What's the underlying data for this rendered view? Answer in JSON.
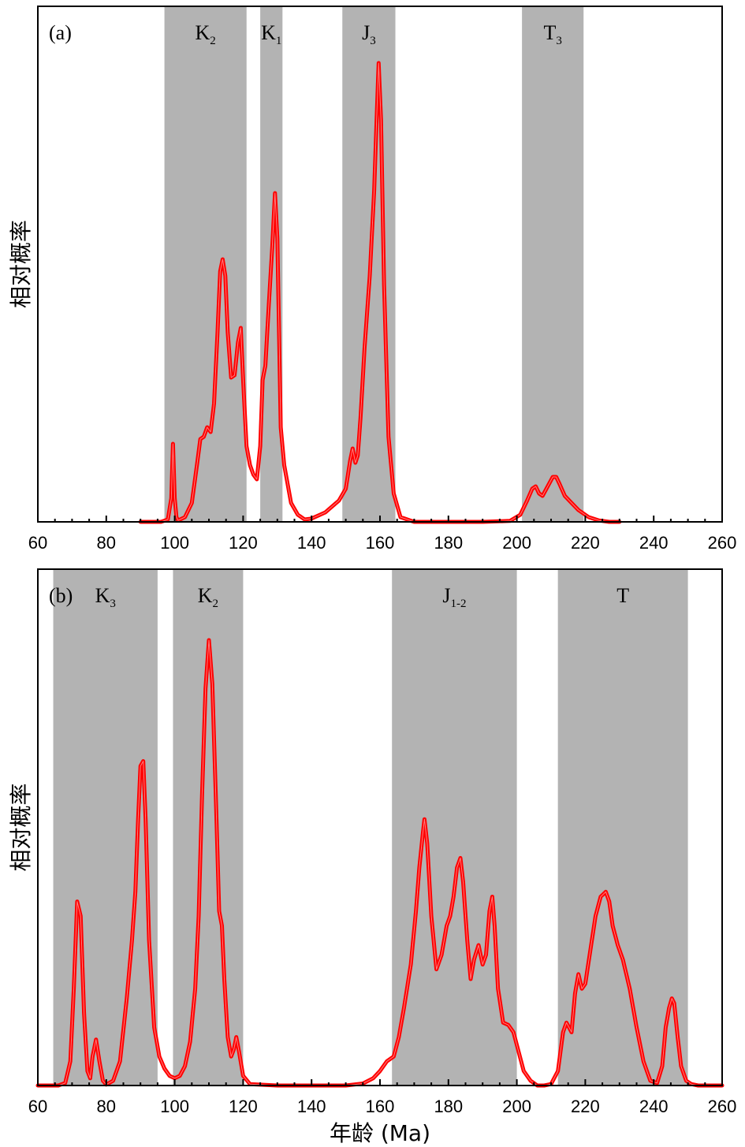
{
  "chart_data": [
    {
      "type": "area",
      "panel_label": "(a)",
      "ylabel": "相对概率",
      "xlabel": "",
      "xlim": [
        60,
        260
      ],
      "xticks": [
        60,
        80,
        100,
        120,
        140,
        160,
        180,
        200,
        220,
        240,
        260
      ],
      "shaded_bands": [
        {
          "base": "K",
          "sub": "2",
          "x0": 97,
          "x1": 121
        },
        {
          "base": "K",
          "sub": "1",
          "x0": 125,
          "x1": 131.5
        },
        {
          "base": "J",
          "sub": "3",
          "x0": 149,
          "x1": 164.5
        },
        {
          "base": "T",
          "sub": "3",
          "x0": 201.5,
          "x1": 219.5
        }
      ],
      "series": [
        {
          "color": "#ff0000",
          "x": [
            90,
            96,
            98,
            99,
            99.5,
            100,
            100.5,
            101,
            103,
            105,
            106.5,
            107.5,
            108.5,
            109.5,
            110.5,
            111.5,
            112.5,
            113.3,
            114,
            114.8,
            115.5,
            116.5,
            117.5,
            118.5,
            119.3,
            120,
            121,
            122,
            123,
            124,
            125,
            125.7,
            126.5,
            127.5,
            128.5,
            129.3,
            130,
            131,
            132,
            134,
            136,
            138,
            140,
            144,
            148,
            150,
            151.3,
            152,
            152.8,
            153.5,
            154.3,
            155.5,
            157,
            158.3,
            159,
            159.6,
            160.3,
            161.2,
            162.5,
            164,
            166,
            170,
            180,
            190,
            198,
            201,
            203,
            204.5,
            205.5,
            206.5,
            207.5,
            209,
            210.5,
            211.5,
            212.5,
            214,
            216,
            218,
            221,
            224,
            227,
            230
          ],
          "y": [
            0,
            0,
            0.005,
            0.05,
            0.165,
            0.05,
            0.01,
            0.003,
            0.01,
            0.04,
            0.12,
            0.175,
            0.18,
            0.2,
            0.19,
            0.25,
            0.4,
            0.53,
            0.555,
            0.52,
            0.4,
            0.305,
            0.31,
            0.38,
            0.41,
            0.3,
            0.16,
            0.12,
            0.1,
            0.09,
            0.16,
            0.3,
            0.33,
            0.46,
            0.58,
            0.695,
            0.6,
            0.2,
            0.12,
            0.04,
            0.015,
            0.005,
            0.007,
            0.02,
            0.045,
            0.07,
            0.13,
            0.155,
            0.125,
            0.14,
            0.22,
            0.37,
            0.52,
            0.7,
            0.85,
            0.97,
            0.85,
            0.5,
            0.18,
            0.06,
            0.01,
            0,
            0,
            0,
            0.002,
            0.015,
            0.045,
            0.07,
            0.075,
            0.06,
            0.055,
            0.075,
            0.095,
            0.095,
            0.08,
            0.055,
            0.04,
            0.025,
            0.01,
            0.003,
            0,
            0
          ]
        }
      ]
    },
    {
      "type": "area",
      "panel_label": "(b)",
      "ylabel": "相对概率",
      "xlabel": "年龄 (Ma)",
      "xlim": [
        60,
        260
      ],
      "xticks": [
        60,
        80,
        100,
        120,
        140,
        160,
        180,
        200,
        220,
        240,
        260
      ],
      "shaded_bands": [
        {
          "base": "K",
          "sub": "3",
          "x0": 64.5,
          "x1": 95
        },
        {
          "base": "K",
          "sub": "2",
          "x0": 99.5,
          "x1": 120
        },
        {
          "base": "J",
          "sub": "1-2",
          "x0": 163.5,
          "x1": 200
        },
        {
          "base": "T",
          "sub": "",
          "x0": 212,
          "x1": 250
        }
      ],
      "series": [
        {
          "color": "#ff0000",
          "x": [
            60,
            66,
            68,
            69.5,
            70.5,
            71.5,
            72.5,
            73.5,
            74.5,
            75.3,
            76,
            77,
            78,
            79,
            80,
            82,
            84,
            86,
            87.5,
            88.5,
            89.3,
            90,
            90.8,
            91.5,
            92.5,
            94,
            95.5,
            97,
            98.5,
            100,
            101.5,
            103,
            104.5,
            106,
            107,
            108,
            109,
            110,
            111,
            112,
            113,
            113.8,
            114.5,
            115.5,
            116.5,
            117.3,
            118,
            118.8,
            120,
            122,
            130,
            140,
            150,
            155,
            158,
            160,
            162,
            164,
            165.5,
            167,
            169,
            170.5,
            171.5,
            172.5,
            173,
            173.8,
            175,
            176.5,
            178,
            179.5,
            180.5,
            181.5,
            182.5,
            183.5,
            184.3,
            185.5,
            186.5,
            187.5,
            188.8,
            190,
            191,
            192,
            192.8,
            193.5,
            194.5,
            196,
            197.5,
            199,
            200.5,
            202,
            204,
            206,
            208,
            210,
            212,
            213.5,
            214.5,
            216,
            217,
            218,
            219,
            220,
            221.5,
            223,
            224.5,
            226,
            227,
            228,
            229.5,
            231,
            233,
            235,
            237,
            239,
            241,
            242.5,
            243.5,
            244.5,
            245.3,
            246,
            247,
            248,
            249.5,
            251,
            253,
            260
          ],
          "y": [
            0,
            0,
            0.005,
            0.05,
            0.2,
            0.38,
            0.35,
            0.15,
            0.03,
            0.015,
            0.06,
            0.095,
            0.05,
            0.01,
            0.002,
            0.01,
            0.05,
            0.18,
            0.3,
            0.4,
            0.55,
            0.66,
            0.67,
            0.55,
            0.3,
            0.12,
            0.06,
            0.035,
            0.02,
            0.015,
            0.02,
            0.04,
            0.09,
            0.2,
            0.35,
            0.6,
            0.82,
            0.92,
            0.83,
            0.6,
            0.36,
            0.33,
            0.22,
            0.1,
            0.06,
            0.075,
            0.1,
            0.07,
            0.02,
            0.003,
            0,
            0,
            0,
            0.004,
            0.015,
            0.03,
            0.05,
            0.06,
            0.1,
            0.16,
            0.25,
            0.36,
            0.45,
            0.52,
            0.55,
            0.5,
            0.35,
            0.24,
            0.27,
            0.33,
            0.35,
            0.39,
            0.45,
            0.47,
            0.42,
            0.3,
            0.22,
            0.26,
            0.29,
            0.25,
            0.27,
            0.36,
            0.39,
            0.33,
            0.2,
            0.13,
            0.125,
            0.11,
            0.07,
            0.03,
            0.01,
            0,
            0,
            0.003,
            0.03,
            0.11,
            0.13,
            0.11,
            0.19,
            0.23,
            0.2,
            0.21,
            0.28,
            0.35,
            0.39,
            0.4,
            0.38,
            0.33,
            0.29,
            0.26,
            0.2,
            0.12,
            0.05,
            0.01,
            0.005,
            0.04,
            0.12,
            0.16,
            0.18,
            0.17,
            0.1,
            0.04,
            0.01,
            0.003,
            0,
            0
          ]
        }
      ]
    }
  ]
}
